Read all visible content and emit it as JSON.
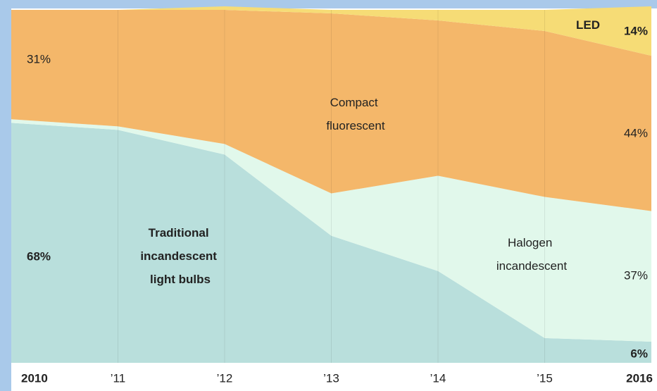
{
  "chart_data": {
    "type": "stacked_area",
    "categories": [
      "2010",
      "’11",
      "’12",
      "’13",
      "’14",
      "’15",
      "2016"
    ],
    "ylim": [
      0,
      100
    ],
    "series": [
      {
        "name": "Traditional incandescent light bulbs",
        "color": "#b9dfdc",
        "values": [
          68,
          66,
          59,
          36,
          26,
          7,
          6
        ],
        "value_labels": [
          "68%",
          null,
          null,
          null,
          null,
          null,
          "6%"
        ]
      },
      {
        "name": "Halogen incandescent",
        "color": "#e1f8eb",
        "values": [
          1,
          1,
          3,
          12,
          27,
          40,
          37
        ],
        "value_labels": [
          null,
          null,
          null,
          null,
          null,
          null,
          "37%"
        ]
      },
      {
        "name": "Compact fluorescent",
        "color": "#f4b76a",
        "values": [
          31,
          33,
          38,
          51,
          44,
          47,
          44
        ],
        "value_labels": [
          "31%",
          null,
          null,
          null,
          null,
          null,
          "44%"
        ]
      },
      {
        "name": "LED",
        "color": "#f6dc76",
        "values": [
          0,
          0,
          1,
          1,
          3,
          6,
          14
        ],
        "value_labels": [
          null,
          null,
          null,
          null,
          null,
          null,
          "14%"
        ]
      }
    ]
  }
}
